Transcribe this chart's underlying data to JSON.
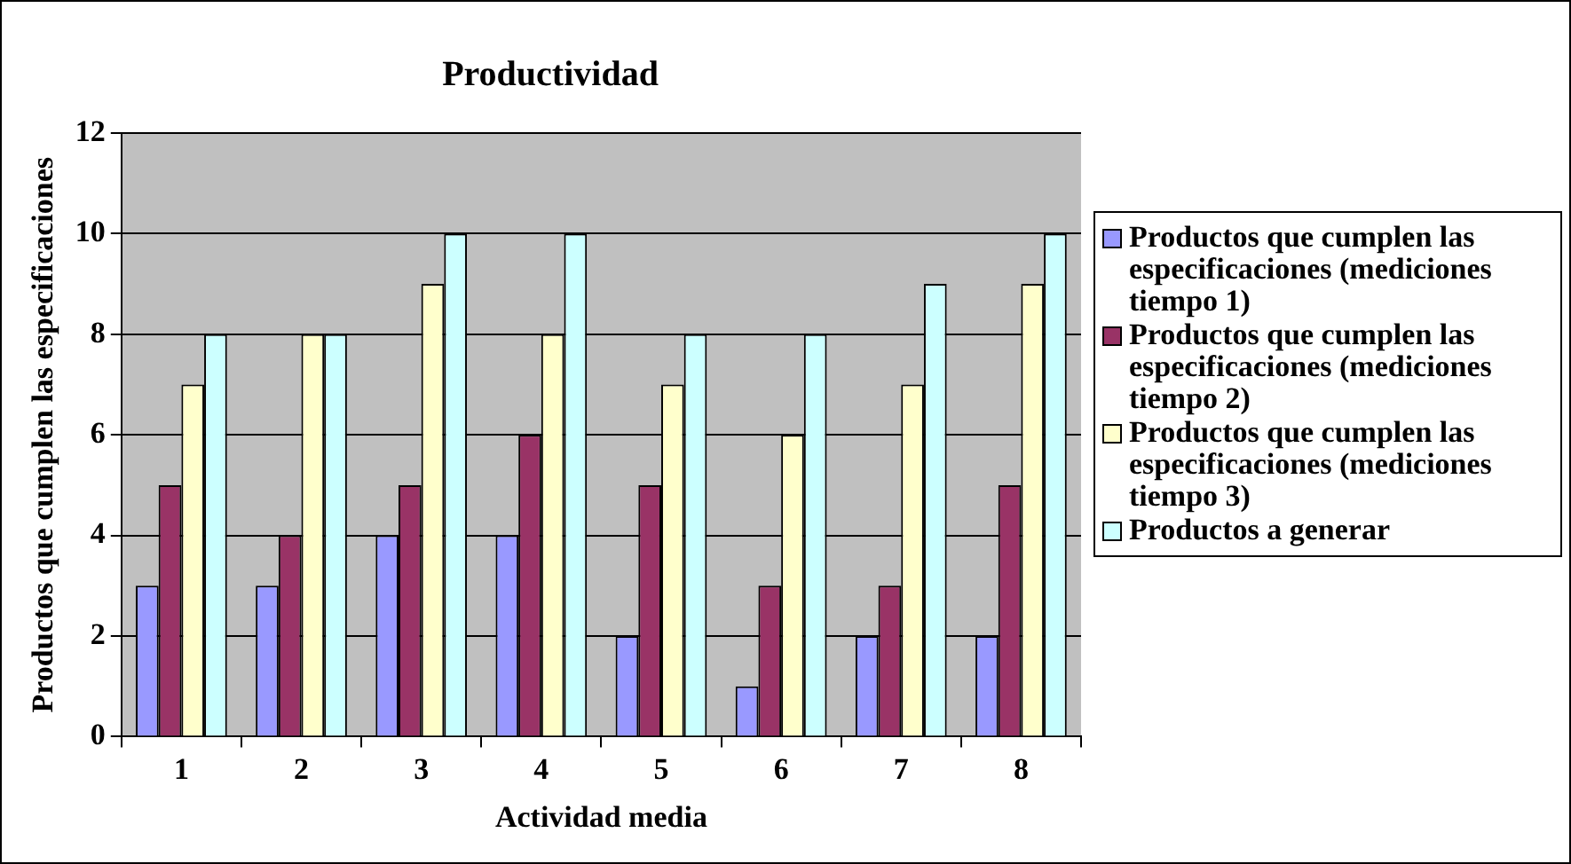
{
  "chart_data": {
    "type": "bar",
    "title": "Productividad",
    "xlabel": "Actividad media",
    "ylabel": "Productos que cumplen las especificaciones",
    "categories": [
      "1",
      "2",
      "3",
      "4",
      "5",
      "6",
      "7",
      "8"
    ],
    "series": [
      {
        "name": "Productos que cumplen las especificaciones (mediciones tiempo 1)",
        "color": "#9999ff",
        "values": [
          3,
          3,
          4,
          4,
          2,
          1,
          2,
          2
        ]
      },
      {
        "name": "Productos que cumplen las especificaciones (mediciones tiempo 2)",
        "color": "#993366",
        "values": [
          5,
          4,
          5,
          6,
          5,
          3,
          3,
          5
        ]
      },
      {
        "name": "Productos que cumplen las especificaciones (mediciones tiempo 3)",
        "color": "#ffffcc",
        "values": [
          7,
          8,
          9,
          8,
          7,
          6,
          7,
          9
        ]
      },
      {
        "name": "Productos a generar",
        "color": "#ccffff",
        "values": [
          8,
          8,
          10,
          10,
          8,
          8,
          9,
          10
        ]
      }
    ],
    "ylim": [
      0,
      12
    ],
    "yticks": [
      0,
      2,
      4,
      6,
      8,
      10,
      12
    ],
    "grid": "y",
    "legend": "right"
  }
}
